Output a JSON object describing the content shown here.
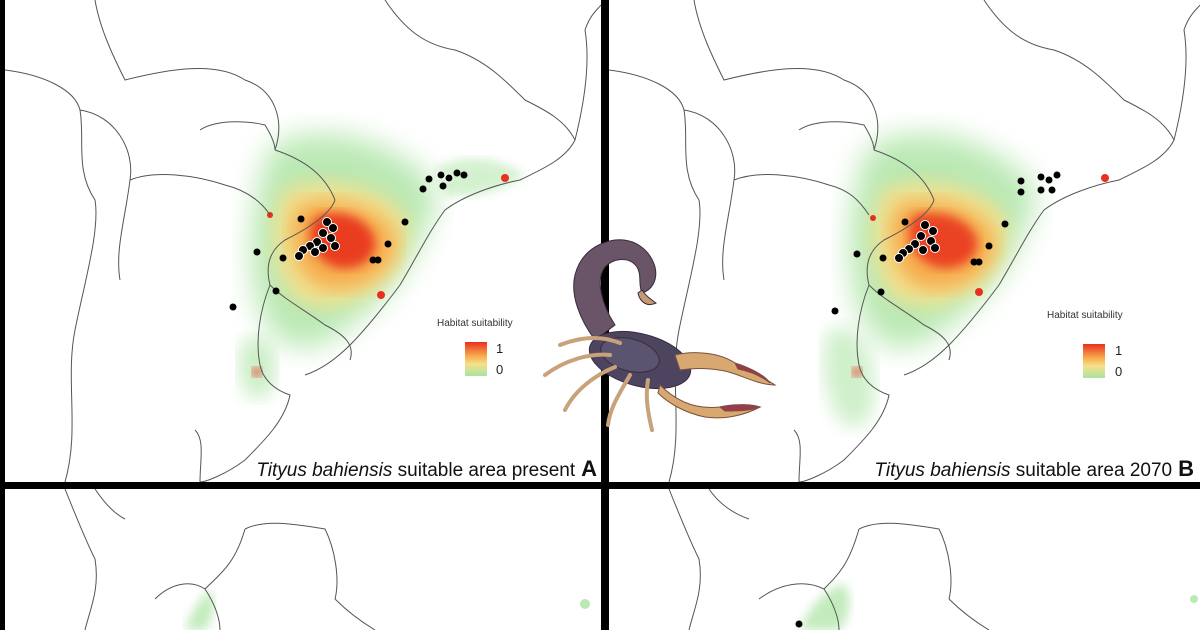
{
  "panels": [
    {
      "id": "A",
      "species": "Tityus bahiensis",
      "caption_rest": " suitable area present",
      "letter": "A"
    },
    {
      "id": "B",
      "species": "Tityus bahiensis",
      "caption_rest": " suitable area 2070",
      "letter": "B"
    }
  ],
  "legend": {
    "title": "Habitat suitability",
    "max_label": "1",
    "min_label": "0"
  },
  "colors": {
    "high": "#e8301f",
    "mid": "#f7a94a",
    "low": "#a9e3a0",
    "border": "#555555",
    "points": "#000000"
  },
  "icons": {
    "specimen": "scorpion-icon"
  }
}
